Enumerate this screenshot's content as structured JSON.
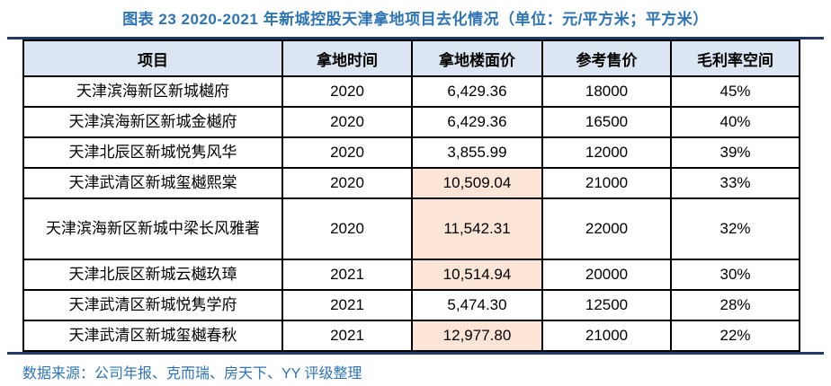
{
  "title": "图表 23 2020-2021 年新城控股天津拿地项目去化情况（单位：元/平方米；平方米）",
  "source": "数据来源：公司年报、克而瑞、房天下、YY 评级整理",
  "colors": {
    "title_blue": "#2E74B5",
    "navy_rule": "#1F3864",
    "header_bg": "#DCE6F2",
    "highlight_bg": "#FCE4D6"
  },
  "chart_data": {
    "type": "table",
    "title": "图表 23 2020-2021 年新城控股天津拿地项目去化情况（单位：元/平方米；平方米）",
    "columns": [
      "项目",
      "拿地时间",
      "拿地楼面价",
      "参考售价",
      "毛利率空间"
    ]
  },
  "table": {
    "headers": [
      "项目",
      "拿地时间",
      "拿地楼面价",
      "参考售价",
      "毛利率空间"
    ],
    "rows": [
      {
        "project": "天津滨海新区新城樾府",
        "year": "2020",
        "floor_price": "6,429.36",
        "ref_price": "18000",
        "margin": "45%",
        "highlight": false
      },
      {
        "project": "天津滨海新区新城金樾府",
        "year": "2020",
        "floor_price": "6,429.36",
        "ref_price": "16500",
        "margin": "40%",
        "highlight": false
      },
      {
        "project": "天津北辰区新城悦隽风华",
        "year": "2020",
        "floor_price": "3,855.99",
        "ref_price": "12000",
        "margin": "39%",
        "highlight": false
      },
      {
        "project": "天津武清区新城玺樾熙棠",
        "year": "2020",
        "floor_price": "10,509.04",
        "ref_price": "21000",
        "margin": "33%",
        "highlight": true
      },
      {
        "project": "天津滨海新区新城中梁长风雅著",
        "year": "2020",
        "floor_price": "11,542.31",
        "ref_price": "22000",
        "margin": "32%",
        "highlight": true
      },
      {
        "project": "天津北辰区新城云樾玖璋",
        "year": "2021",
        "floor_price": "10,514.94",
        "ref_price": "20000",
        "margin": "30%",
        "highlight": true
      },
      {
        "project": "天津武清区新城悦隽学府",
        "year": "2021",
        "floor_price": "5,474.30",
        "ref_price": "12500",
        "margin": "28%",
        "highlight": false
      },
      {
        "project": "天津武清区新城玺樾春秋",
        "year": "2021",
        "floor_price": "12,977.80",
        "ref_price": "21000",
        "margin": "22%",
        "highlight": true
      }
    ]
  }
}
